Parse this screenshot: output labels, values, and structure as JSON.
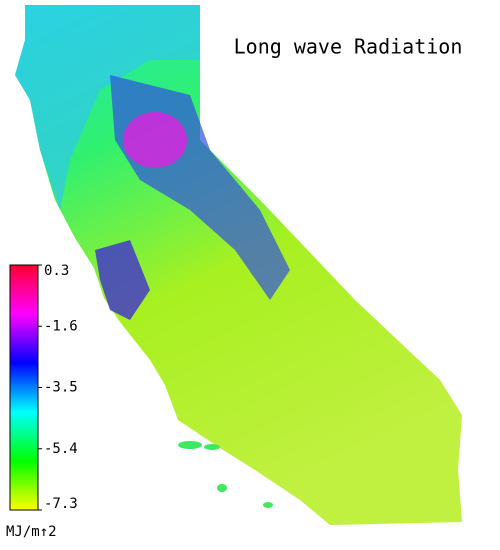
{
  "title": "Long wave Radiation",
  "colorbar": {
    "lim": [
      -7.3,
      0.3
    ],
    "ticks": [
      0.3,
      -1.6,
      -3.5,
      -5.4,
      -7.3
    ],
    "colors": [
      "#ffff00",
      "#00ff00",
      "#00ffff",
      "#0000ff",
      "#ff00ff",
      "#ff0030"
    ],
    "unit": "MJ/m↑2"
  }
}
